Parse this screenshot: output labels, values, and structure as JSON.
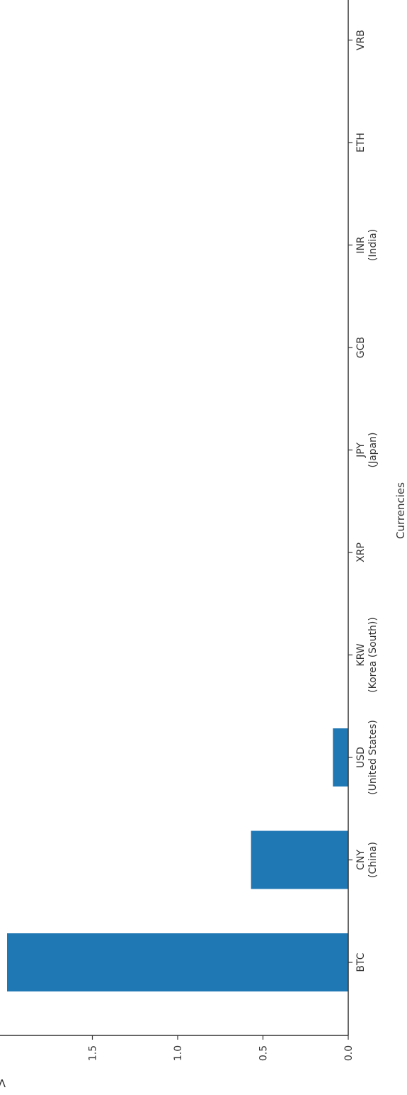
{
  "chart_data": {
    "type": "bar",
    "orientation": "rotated",
    "xlabel": "Currencies",
    "ylabel": "Volume (in X",
    "categories": [
      [
        "BTC"
      ],
      [
        "CNY",
        "(China)"
      ],
      [
        "USD",
        "(United States)"
      ],
      [
        "KRW",
        "(Korea (South))"
      ],
      [
        "XRP"
      ],
      [
        "JPY",
        "(Japan)"
      ],
      [
        "GCB"
      ],
      [
        "INR",
        "(India)"
      ],
      [
        "ETH"
      ],
      [
        "VRB"
      ]
    ],
    "values": [
      2.0,
      0.57,
      0.09,
      0,
      0,
      0,
      0,
      0,
      0,
      0
    ],
    "ylim": [
      0,
      2.0
    ],
    "yticks": [
      0.0,
      0.5,
      1.0,
      1.5
    ],
    "ytick_labels": [
      "0.0",
      "0.5",
      "1.0",
      "1.5"
    ],
    "grid": false,
    "bar_color": "#1f77b4"
  }
}
